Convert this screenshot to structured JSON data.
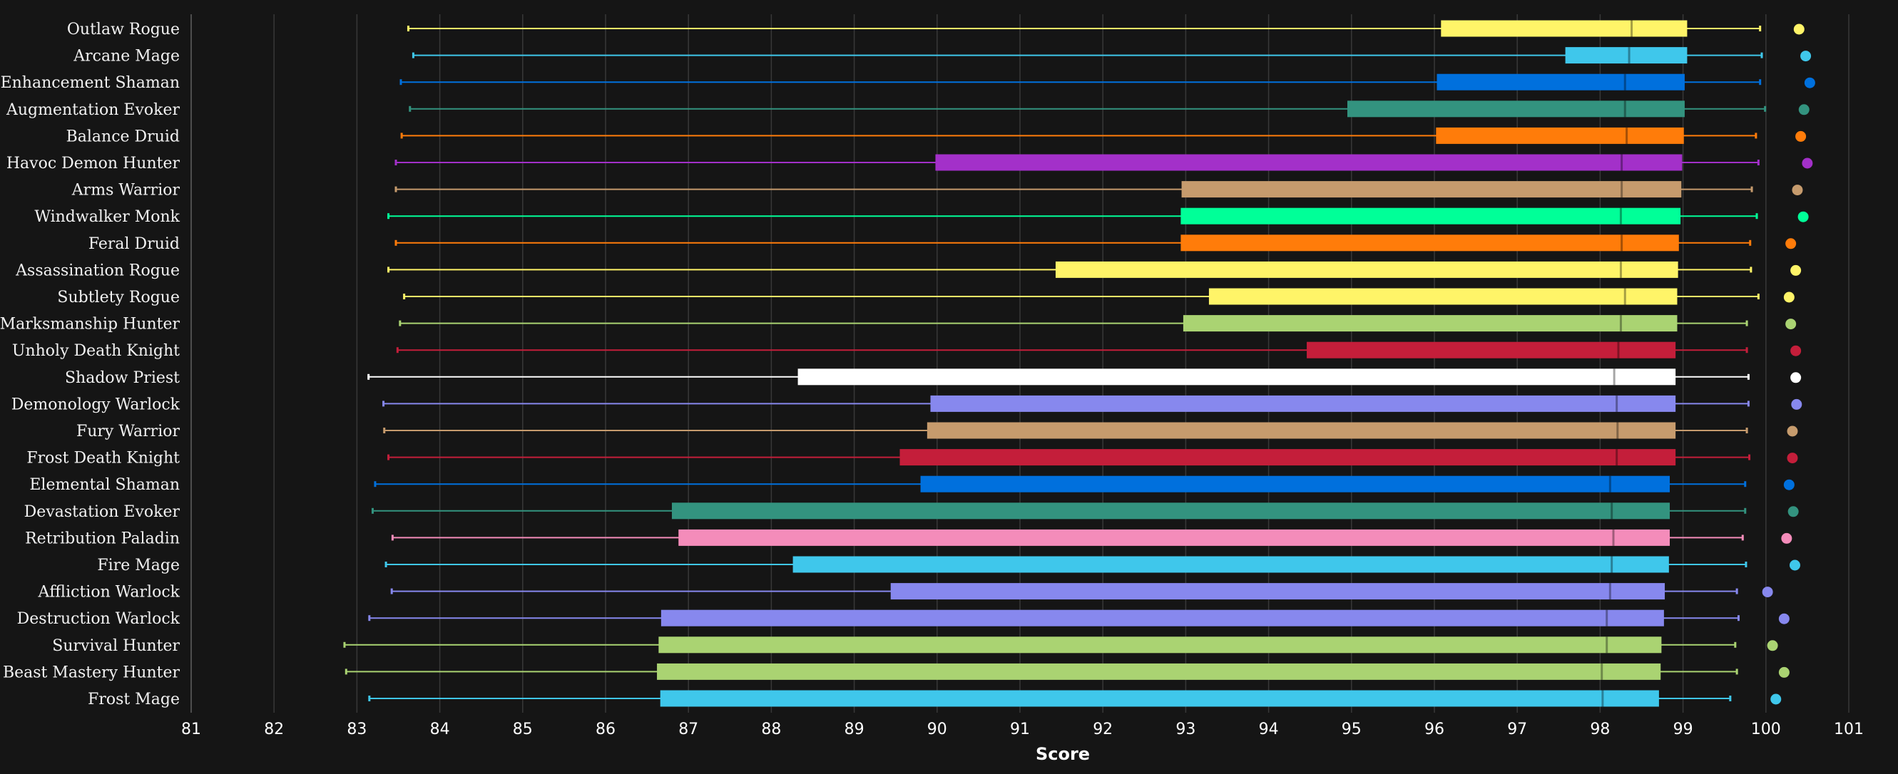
{
  "chart_data": {
    "type": "boxplot",
    "title": "",
    "xlabel": "Score",
    "ylabel": "",
    "xlim": [
      81,
      101
    ],
    "xticks": [
      81,
      82,
      83,
      84,
      85,
      86,
      87,
      88,
      89,
      90,
      91,
      92,
      93,
      94,
      95,
      96,
      97,
      98,
      99,
      100,
      101
    ],
    "grid": true,
    "categories": [
      "Outlaw Rogue",
      "Arcane Mage",
      "Enhancement Shaman",
      "Augmentation Evoker",
      "Balance Druid",
      "Havoc Demon Hunter",
      "Arms Warrior",
      "Windwalker Monk",
      "Feral Druid",
      "Assassination Rogue",
      "Subtlety Rogue",
      "Marksmanship Hunter",
      "Unholy Death Knight",
      "Shadow Priest",
      "Demonology Warlock",
      "Fury Warrior",
      "Frost Death Knight",
      "Elemental Shaman",
      "Devastation Evoker",
      "Retribution Paladin",
      "Fire Mage",
      "Affliction Warlock",
      "Destruction Warlock",
      "Survival Hunter",
      "Beast Mastery Hunter",
      "Frost Mage"
    ],
    "series": [
      {
        "min": 83.62,
        "q1": 96.08,
        "median": 98.38,
        "q3": 99.05,
        "max": 99.93,
        "outlier": 100.4,
        "color": "#FFF468"
      },
      {
        "min": 83.68,
        "q1": 97.58,
        "median": 98.35,
        "q3": 99.05,
        "max": 99.95,
        "outlier": 100.48,
        "color": "#3FC7EB"
      },
      {
        "min": 83.53,
        "q1": 96.03,
        "median": 98.3,
        "q3": 99.02,
        "max": 99.93,
        "outlier": 100.53,
        "color": "#0070DD"
      },
      {
        "min": 83.64,
        "q1": 94.95,
        "median": 98.3,
        "q3": 99.02,
        "max": 99.99,
        "outlier": 100.46,
        "color": "#33937F"
      },
      {
        "min": 83.54,
        "q1": 96.02,
        "median": 98.32,
        "q3": 99.01,
        "max": 99.88,
        "outlier": 100.42,
        "color": "#FF7C0A"
      },
      {
        "min": 83.47,
        "q1": 89.98,
        "median": 98.26,
        "q3": 98.99,
        "max": 99.91,
        "outlier": 100.5,
        "color": "#A330C9"
      },
      {
        "min": 83.47,
        "q1": 92.95,
        "median": 98.26,
        "q3": 98.98,
        "max": 99.83,
        "outlier": 100.38,
        "color": "#C69B6D"
      },
      {
        "min": 83.38,
        "q1": 92.94,
        "median": 98.25,
        "q3": 98.97,
        "max": 99.89,
        "outlier": 100.45,
        "color": "#00FF98"
      },
      {
        "min": 83.47,
        "q1": 92.94,
        "median": 98.26,
        "q3": 98.95,
        "max": 99.81,
        "outlier": 100.3,
        "color": "#FF7C0A"
      },
      {
        "min": 83.38,
        "q1": 91.43,
        "median": 98.25,
        "q3": 98.94,
        "max": 99.82,
        "outlier": 100.36,
        "color": "#FFF468"
      },
      {
        "min": 83.57,
        "q1": 93.28,
        "median": 98.3,
        "q3": 98.93,
        "max": 99.91,
        "outlier": 100.28,
        "color": "#FFF468"
      },
      {
        "min": 83.52,
        "q1": 92.97,
        "median": 98.25,
        "q3": 98.93,
        "max": 99.77,
        "outlier": 100.3,
        "color": "#AAD372"
      },
      {
        "min": 83.49,
        "q1": 94.46,
        "median": 98.22,
        "q3": 98.91,
        "max": 99.77,
        "outlier": 100.36,
        "color": "#C41E3A"
      },
      {
        "min": 83.14,
        "q1": 88.32,
        "median": 98.17,
        "q3": 98.91,
        "max": 99.79,
        "outlier": 100.36,
        "color": "#FFFFFF"
      },
      {
        "min": 83.32,
        "q1": 89.92,
        "median": 98.2,
        "q3": 98.91,
        "max": 99.79,
        "outlier": 100.37,
        "color": "#8788EE"
      },
      {
        "min": 83.33,
        "q1": 89.88,
        "median": 98.21,
        "q3": 98.91,
        "max": 99.77,
        "outlier": 100.32,
        "color": "#C69B6D"
      },
      {
        "min": 83.38,
        "q1": 89.55,
        "median": 98.2,
        "q3": 98.91,
        "max": 99.8,
        "outlier": 100.32,
        "color": "#C41E3A"
      },
      {
        "min": 83.22,
        "q1": 89.8,
        "median": 98.12,
        "q3": 98.84,
        "max": 99.75,
        "outlier": 100.28,
        "color": "#0070DD"
      },
      {
        "min": 83.19,
        "q1": 86.8,
        "median": 98.14,
        "q3": 98.84,
        "max": 99.75,
        "outlier": 100.33,
        "color": "#33937F"
      },
      {
        "min": 83.43,
        "q1": 86.88,
        "median": 98.16,
        "q3": 98.84,
        "max": 99.72,
        "outlier": 100.25,
        "color": "#F48CBA"
      },
      {
        "min": 83.35,
        "q1": 88.26,
        "median": 98.14,
        "q3": 98.83,
        "max": 99.76,
        "outlier": 100.35,
        "color": "#3FC7EB"
      },
      {
        "min": 83.42,
        "q1": 89.44,
        "median": 98.12,
        "q3": 98.78,
        "max": 99.65,
        "outlier": 100.02,
        "color": "#8788EE"
      },
      {
        "min": 83.15,
        "q1": 86.67,
        "median": 98.08,
        "q3": 98.77,
        "max": 99.67,
        "outlier": 100.22,
        "color": "#8788EE"
      },
      {
        "min": 82.85,
        "q1": 86.64,
        "median": 98.08,
        "q3": 98.74,
        "max": 99.63,
        "outlier": 100.08,
        "color": "#AAD372"
      },
      {
        "min": 82.87,
        "q1": 86.62,
        "median": 98.02,
        "q3": 98.73,
        "max": 99.65,
        "outlier": 100.22,
        "color": "#AAD372"
      },
      {
        "min": 83.15,
        "q1": 86.66,
        "median": 98.03,
        "q3": 98.71,
        "max": 99.57,
        "outlier": 100.12,
        "color": "#3FC7EB"
      }
    ]
  }
}
